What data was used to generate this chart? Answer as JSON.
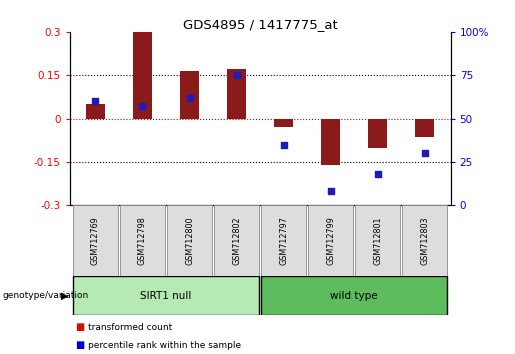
{
  "title": "GDS4895 / 1417775_at",
  "samples": [
    "GSM712769",
    "GSM712798",
    "GSM712800",
    "GSM712802",
    "GSM712797",
    "GSM712799",
    "GSM712801",
    "GSM712803"
  ],
  "transformed_count": [
    0.05,
    0.3,
    0.165,
    0.17,
    -0.03,
    -0.16,
    -0.1,
    -0.065
  ],
  "percentile_rank": [
    60,
    57,
    62,
    75,
    35,
    8,
    18,
    30
  ],
  "ylim_left": [
    -0.3,
    0.3
  ],
  "ylim_right": [
    0,
    100
  ],
  "yticks_left": [
    -0.3,
    -0.15,
    0,
    0.15,
    0.3
  ],
  "yticks_right": [
    0,
    25,
    50,
    75,
    100
  ],
  "groups": [
    {
      "label": "SIRT1 null",
      "start": 0,
      "end": 4,
      "color": "#B5EAB5"
    },
    {
      "label": "wild type",
      "start": 4,
      "end": 8,
      "color": "#5DBD5D"
    }
  ],
  "bar_color": "#8B1A1A",
  "dot_color": "#1C1CB8",
  "zero_line_color": "#CC0000",
  "background_color": "#FFFFFF",
  "group_label_x": "genotype/variation",
  "legend_items": [
    {
      "label": "transformed count",
      "color": "#CC1100"
    },
    {
      "label": "percentile rank within the sample",
      "color": "#0000CC"
    }
  ]
}
